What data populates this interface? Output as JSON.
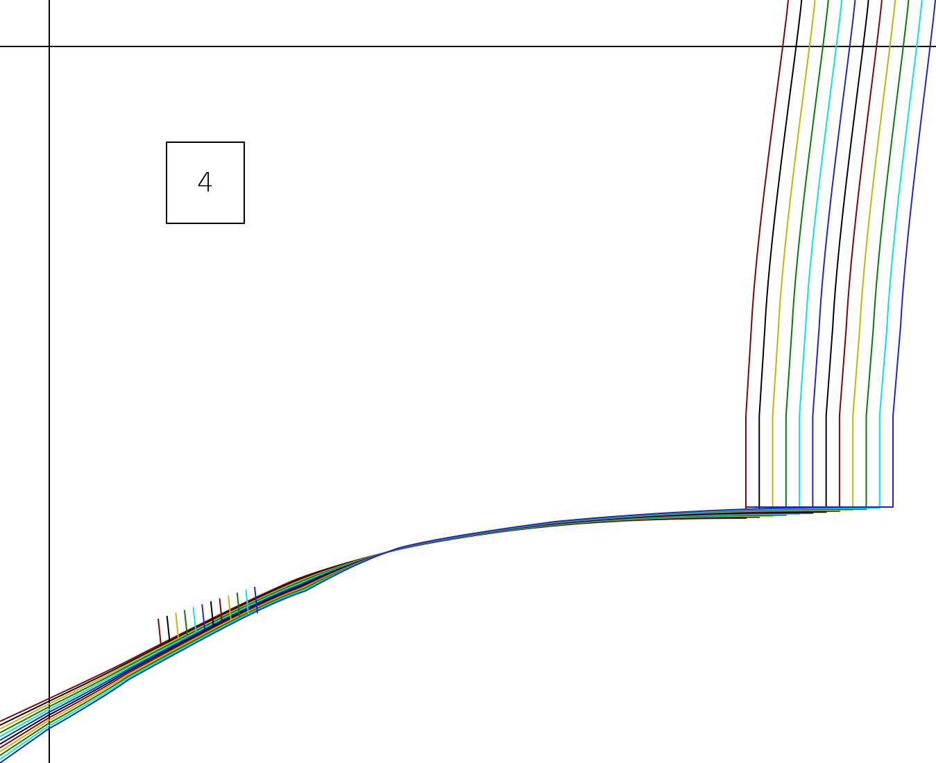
{
  "drawing": {
    "label": "4"
  },
  "colors": {
    "background": "#ffffff",
    "frame": "#000000",
    "trace_palette": [
      "#8b0000",
      "#000000",
      "#c8b400",
      "#008000",
      "#00e5ee",
      "#2020e0"
    ],
    "trace_order": [
      "dark-red",
      "black",
      "yellow",
      "green",
      "cyan",
      "blue",
      "black",
      "dark-red",
      "yellow",
      "green",
      "cyan",
      "blue"
    ]
  },
  "traces": {
    "count": 12,
    "style": "parallel wire bundle"
  }
}
